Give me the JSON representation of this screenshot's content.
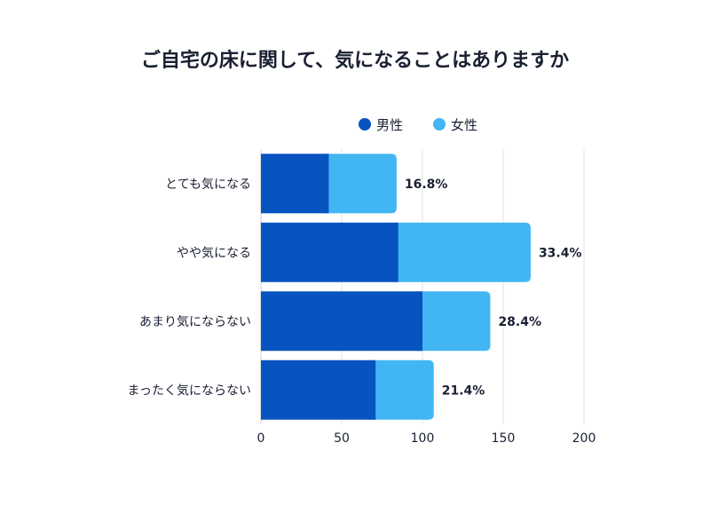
{
  "chart_data": {
    "type": "bar",
    "stacked": true,
    "orientation": "horizontal",
    "title": "ご自宅の床に関して、気になることはありますか",
    "categories": [
      "とても気になる",
      "やや気になる",
      "あまり気にならない",
      "まったく気にならない"
    ],
    "series": [
      {
        "name": "男性",
        "values": [
          42,
          85,
          100,
          71
        ],
        "color": "#0753c0"
      },
      {
        "name": "女性",
        "values": [
          42,
          82,
          42,
          36
        ],
        "color": "#42b6f2"
      }
    ],
    "data_labels": [
      "16.8%",
      "33.4%",
      "28.4%",
      "21.4%"
    ],
    "xlim": [
      0,
      200
    ],
    "xticks": [
      0,
      50,
      100,
      150,
      200
    ],
    "grid": true,
    "legend": "top-center",
    "colors": {
      "title": "#1a2033",
      "text": "#1a2033",
      "grid": "#e3e3e3"
    }
  }
}
